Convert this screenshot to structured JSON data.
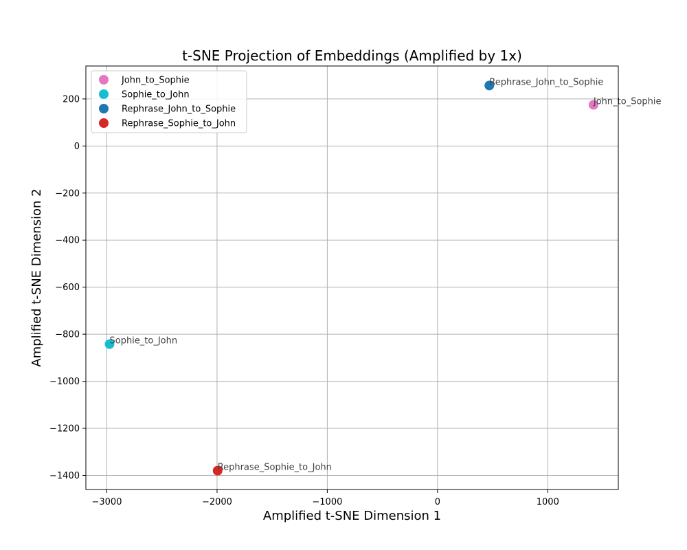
{
  "chart_data": {
    "type": "scatter",
    "title": "t-SNE Projection of Embeddings (Amplified by 1x)",
    "xlabel": "Amplified t-SNE Dimension 1",
    "ylabel": "Amplified t-SNE Dimension 2",
    "xlim": [
      -3190,
      1640
    ],
    "ylim": [
      -1460,
      340
    ],
    "x_ticks": [
      -3000,
      -2000,
      -1000,
      0,
      1000
    ],
    "x_tick_labels": [
      "−3000",
      "−2000",
      "−1000",
      "0",
      "1000"
    ],
    "y_ticks": [
      200,
      0,
      -200,
      -400,
      -600,
      -800,
      -1000,
      -1200,
      -1400
    ],
    "y_tick_labels": [
      "200",
      "0",
      "−200",
      "−400",
      "−600",
      "−800",
      "−1000",
      "−1200",
      "−1400"
    ],
    "grid": true,
    "legend_position": "top-left",
    "series": [
      {
        "name": "John_to_Sophie",
        "color": "#e377c2",
        "points": [
          {
            "x": 1415,
            "y": 175,
            "label": "John_to_Sophie"
          }
        ]
      },
      {
        "name": "Sophie_to_John",
        "color": "#17becf",
        "points": [
          {
            "x": -2975,
            "y": -842,
            "label": "Sophie_to_John"
          }
        ]
      },
      {
        "name": "Rephrase_John_to_Sophie",
        "color": "#1f77b4",
        "points": [
          {
            "x": 470,
            "y": 257,
            "label": "Rephrase_John_to_Sophie"
          }
        ]
      },
      {
        "name": "Rephrase_Sophie_to_John",
        "color": "#d62728",
        "points": [
          {
            "x": -1995,
            "y": -1380,
            "label": "Rephrase_Sophie_to_John"
          }
        ]
      }
    ]
  }
}
